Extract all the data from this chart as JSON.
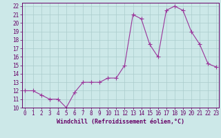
{
  "x": [
    0,
    1,
    2,
    3,
    4,
    5,
    6,
    7,
    8,
    9,
    10,
    11,
    12,
    13,
    14,
    15,
    16,
    17,
    18,
    19,
    20,
    21,
    22,
    23
  ],
  "y": [
    12,
    12,
    11.5,
    11,
    11,
    10,
    11.8,
    13,
    13,
    13,
    13.5,
    13.5,
    15,
    21,
    20.5,
    17.5,
    16,
    21.5,
    22,
    21.5,
    19,
    17.5,
    15.2,
    14.8
  ],
  "xlabel": "Windchill (Refroidissement éolien,°C)",
  "ylim_min": 10,
  "ylim_max": 22.4,
  "xlim_min": -0.3,
  "xlim_max": 23.3,
  "yticks": [
    10,
    11,
    12,
    13,
    14,
    15,
    16,
    17,
    18,
    19,
    20,
    21,
    22
  ],
  "xticks": [
    0,
    1,
    2,
    3,
    4,
    5,
    6,
    7,
    8,
    9,
    10,
    11,
    12,
    13,
    14,
    15,
    16,
    17,
    18,
    19,
    20,
    21,
    22,
    23
  ],
  "line_color": "#993399",
  "marker": "+",
  "marker_size": 4,
  "bg_color": "#cce8e8",
  "grid_color": "#aacccc",
  "tick_color": "#660066",
  "label_color": "#660066",
  "font_name": "monospace",
  "tick_fontsize": 5.5,
  "xlabel_fontsize": 6.0
}
